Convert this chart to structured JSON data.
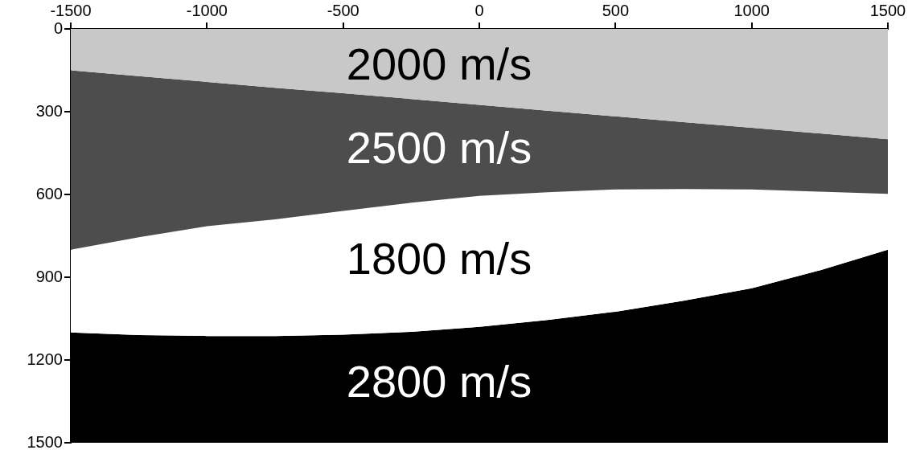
{
  "chart_data": {
    "type": "area",
    "x": [
      -1500,
      -1250,
      -1000,
      -750,
      -500,
      -250,
      0,
      250,
      500,
      750,
      1000,
      1250,
      1500
    ],
    "series": [
      {
        "name": "2000 m/s",
        "color": "#c8c8c8",
        "values": [
          150,
          171,
          192,
          213,
          233,
          254,
          275,
          296,
          317,
          338,
          358,
          379,
          400
        ]
      },
      {
        "name": "2500 m/s",
        "color": "#4d4d4d",
        "values": [
          800,
          755,
          715,
          690,
          660,
          630,
          605,
          592,
          582,
          580,
          582,
          590,
          598
        ]
      },
      {
        "name": "1800 m/s",
        "color": "#ffffff",
        "values": [
          1100,
          1110,
          1113,
          1113,
          1108,
          1098,
          1080,
          1055,
          1025,
          985,
          940,
          875,
          800
        ]
      },
      {
        "name": "2800 m/s",
        "color": "#000000",
        "values": [
          1500,
          1500,
          1500,
          1500,
          1500,
          1500,
          1500,
          1500,
          1500,
          1500,
          1500,
          1500,
          1500
        ]
      }
    ],
    "xlim": [
      -1500,
      1500
    ],
    "xticks": [
      -1500,
      -1000,
      -500,
      0,
      500,
      1000,
      1500
    ],
    "ylim": [
      1500,
      0
    ],
    "yticks": [
      0,
      300,
      600,
      900,
      1200,
      1500
    ],
    "grid": false,
    "legend": false
  }
}
